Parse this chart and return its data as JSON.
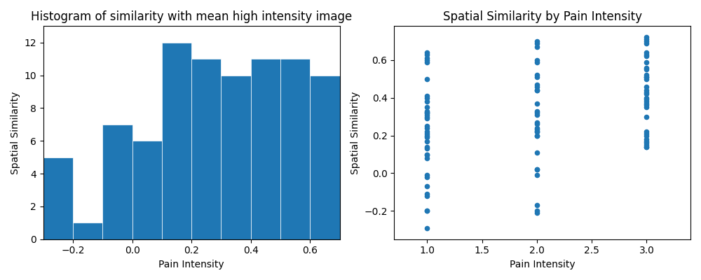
{
  "hist_title": "Histogram of similarity with mean high intensity image",
  "hist_xlabel": "Pain Intensity",
  "hist_ylabel": "Spatial Similarity",
  "hist_bin_edges": [
    -0.3,
    -0.2,
    -0.1,
    0.0,
    0.1,
    0.2,
    0.3,
    0.4,
    0.5,
    0.6,
    0.7
  ],
  "hist_counts": [
    5,
    1,
    7,
    6,
    12,
    11,
    10,
    11,
    11,
    10
  ],
  "scatter_title": "Spatial Similarity by Pain Intensity",
  "scatter_xlabel": "Pain Intensity",
  "scatter_ylabel": "Spatial Similarity",
  "scatter_color": "#1f77b4",
  "pain1_similarity": [
    0.64,
    0.63,
    0.61,
    0.6,
    0.59,
    0.5,
    0.41,
    0.4,
    0.38,
    0.35,
    0.33,
    0.32,
    0.32,
    0.31,
    0.3,
    0.29,
    0.25,
    0.24,
    0.22,
    0.21,
    0.2,
    0.19,
    0.17,
    0.14,
    0.13,
    0.1,
    0.1,
    0.08,
    -0.01,
    -0.02,
    -0.07,
    -0.11,
    -0.12,
    -0.2,
    -0.2,
    -0.29
  ],
  "pain2_similarity": [
    0.7,
    0.69,
    0.67,
    0.6,
    0.59,
    0.52,
    0.51,
    0.47,
    0.46,
    0.44,
    0.44,
    0.37,
    0.33,
    0.32,
    0.31,
    0.27,
    0.26,
    0.24,
    0.23,
    0.22,
    0.22,
    0.2,
    0.2,
    0.11,
    0.02,
    0.02,
    -0.01,
    -0.17,
    -0.2,
    -0.21
  ],
  "pain3_similarity": [
    0.72,
    0.71,
    0.7,
    0.69,
    0.64,
    0.63,
    0.62,
    0.59,
    0.56,
    0.55,
    0.52,
    0.51,
    0.51,
    0.5,
    0.46,
    0.44,
    0.43,
    0.42,
    0.4,
    0.39,
    0.38,
    0.37,
    0.36,
    0.35,
    0.3,
    0.22,
    0.21,
    0.2,
    0.18,
    0.17,
    0.16,
    0.15,
    0.14,
    0.14
  ]
}
